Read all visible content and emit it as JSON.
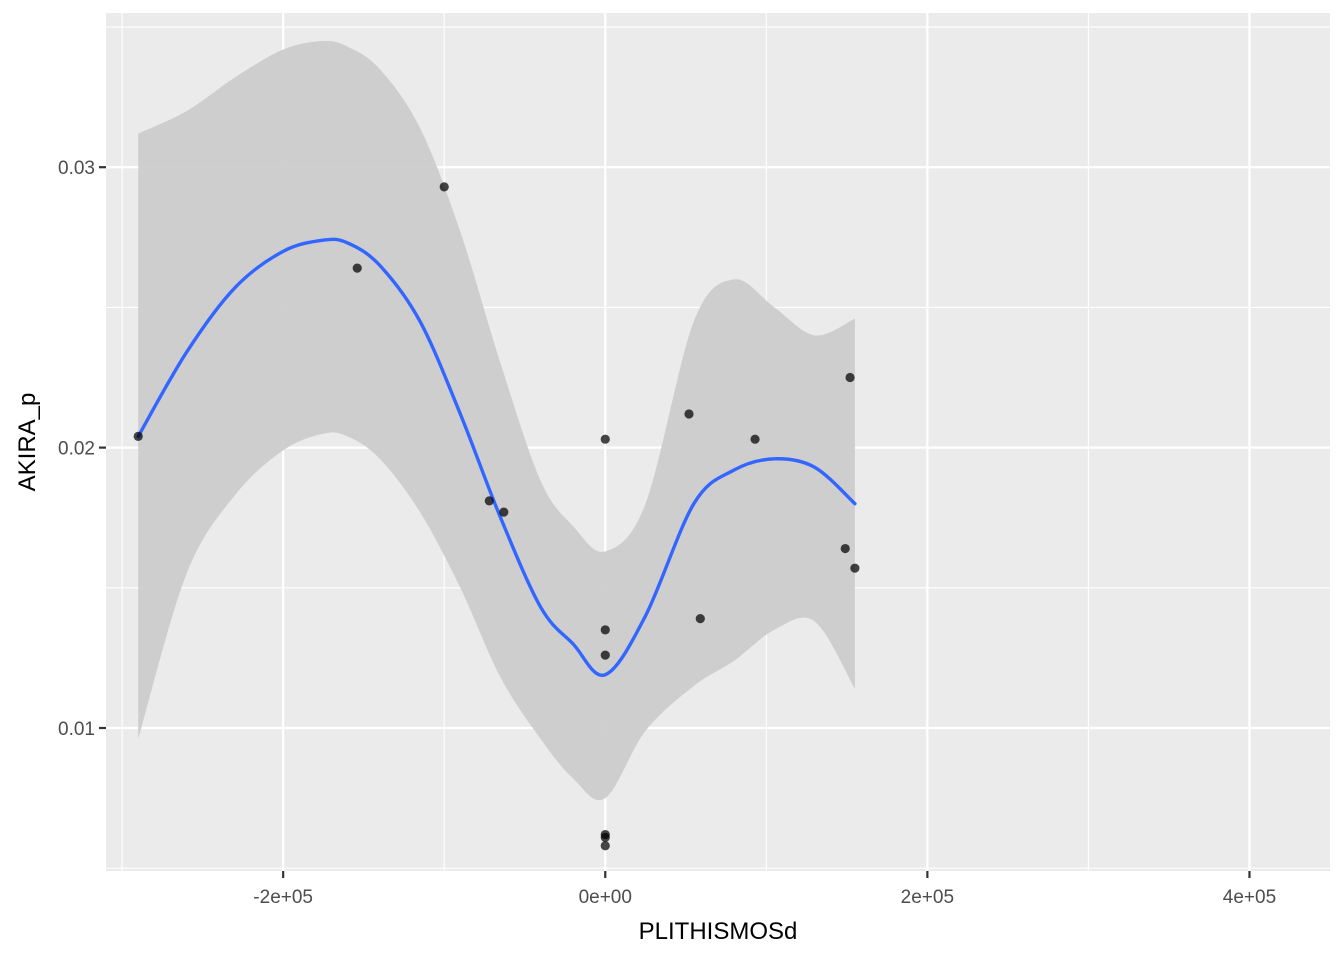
{
  "chart_data": {
    "type": "scatter",
    "title": "",
    "xlabel": "PLITHISMOSd",
    "ylabel": "AKIRA_p",
    "xlim": [
      -310000,
      450000
    ],
    "ylim": [
      0.0049,
      0.0355
    ],
    "x_ticks": [
      -200000,
      0,
      200000,
      400000
    ],
    "x_tick_labels": [
      "-2e+05",
      "0e+00",
      "2e+05",
      "4e+05"
    ],
    "x_minor_ticks": [
      -300000,
      -100000,
      100000,
      300000
    ],
    "y_ticks": [
      0.01,
      0.02,
      0.03
    ],
    "y_tick_labels": [
      "0.01",
      "0.02",
      "0.03"
    ],
    "y_minor_ticks": [
      0.005,
      0.015,
      0.025,
      0.035
    ],
    "grid": true,
    "legend": "none",
    "colors": {
      "panel": "#EBEBEB",
      "grid": "#FFFFFF",
      "points": "#000000",
      "smooth": "#3366FF",
      "band": "#CCCCCC"
    },
    "points": {
      "x": [
        -290000,
        -154000,
        -100000,
        -72000,
        -63000,
        0,
        0,
        0,
        0,
        0,
        0,
        52000,
        59000,
        93000,
        149000,
        152000,
        155000
      ],
      "y": [
        0.0204,
        0.0264,
        0.0293,
        0.0181,
        0.0177,
        0.0203,
        0.0135,
        0.0126,
        0.0061,
        0.0058,
        0.0062,
        0.0212,
        0.0139,
        0.0203,
        0.0164,
        0.0225,
        0.0157
      ]
    },
    "smooth": {
      "x": [
        -290000,
        -260000,
        -230000,
        -200000,
        -175000,
        -160000,
        -140000,
        -115000,
        -90000,
        -65000,
        -40000,
        -20000,
        0,
        25000,
        55000,
        80000,
        105000,
        130000,
        155000
      ],
      "y": [
        0.0204,
        0.0234,
        0.0257,
        0.027,
        0.0274,
        0.0273,
        0.0265,
        0.0245,
        0.0212,
        0.0175,
        0.0143,
        0.013,
        0.0119,
        0.014,
        0.018,
        0.0192,
        0.0196,
        0.0193,
        0.018
      ],
      "lower": [
        0.0096,
        0.0155,
        0.0183,
        0.0199,
        0.0205,
        0.0204,
        0.0196,
        0.0177,
        0.015,
        0.0118,
        0.0096,
        0.0082,
        0.0075,
        0.0099,
        0.0115,
        0.0124,
        0.0135,
        0.0138,
        0.0114
      ],
      "upper": [
        0.0312,
        0.032,
        0.0332,
        0.0342,
        0.0345,
        0.0343,
        0.0335,
        0.0314,
        0.0277,
        0.023,
        0.0188,
        0.0172,
        0.0163,
        0.018,
        0.0245,
        0.026,
        0.025,
        0.024,
        0.0246
      ]
    }
  }
}
